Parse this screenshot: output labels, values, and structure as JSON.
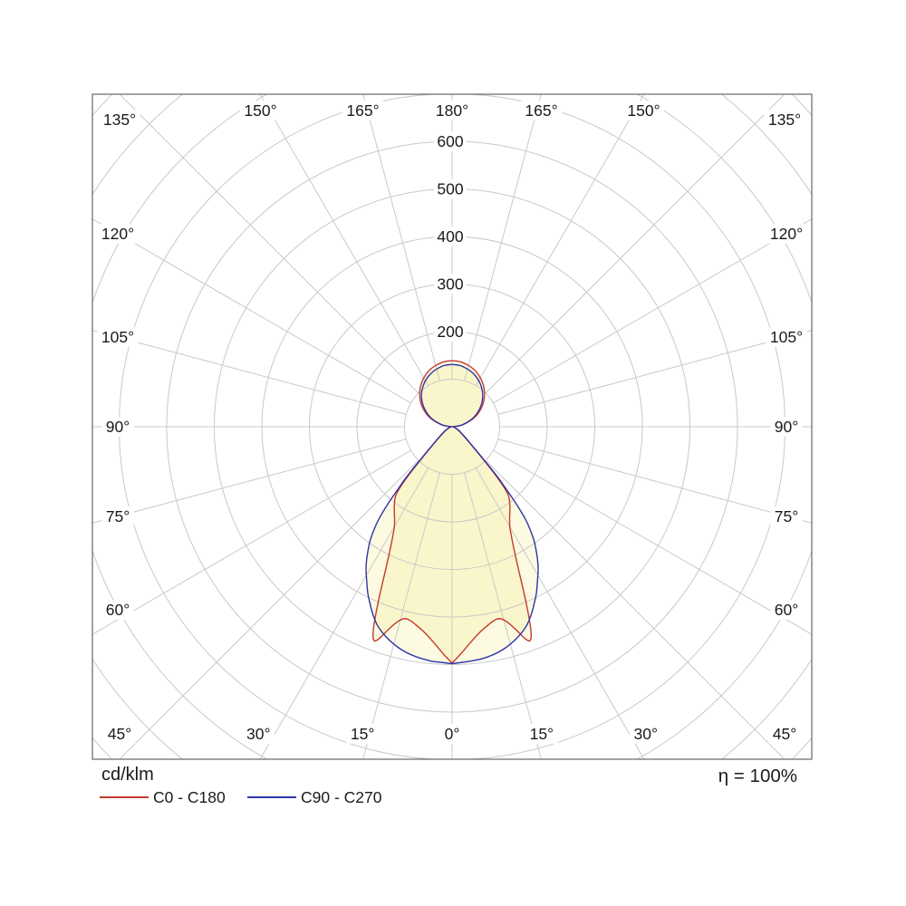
{
  "page": {
    "background": "#ffffff"
  },
  "chart_data": {
    "type": "polar_photometric",
    "title": "",
    "unit_label": "cd/klm",
    "efficiency_label": "η = 100%",
    "grid": {
      "ring_step_cd": 100,
      "ring_count": 10,
      "ray_step_deg": 15,
      "ray_inner_value_cd": 100,
      "grid_color": "#c9c9c9",
      "frame_color": "#666666"
    },
    "radial_axis": {
      "tick_labels": [
        {
          "value": 200,
          "label": "200"
        },
        {
          "value": 300,
          "label": "300"
        },
        {
          "value": 400,
          "label": "400"
        },
        {
          "value": 500,
          "label": "500"
        },
        {
          "value": 600,
          "label": "600"
        }
      ]
    },
    "angle_labels": [
      {
        "angle": -135,
        "label": "135°"
      },
      {
        "angle": -150,
        "label": "150°"
      },
      {
        "angle": -165,
        "label": "165°"
      },
      {
        "angle": 180,
        "label": "180°"
      },
      {
        "angle": 165,
        "label": "165°"
      },
      {
        "angle": 150,
        "label": "150°"
      },
      {
        "angle": 135,
        "label": "135°"
      },
      {
        "angle": -120,
        "label": "120°"
      },
      {
        "angle": -105,
        "label": "105°"
      },
      {
        "angle": -90,
        "label": "90°"
      },
      {
        "angle": -75,
        "label": "75°"
      },
      {
        "angle": -60,
        "label": "60°"
      },
      {
        "angle": 120,
        "label": "120°"
      },
      {
        "angle": 105,
        "label": "105°"
      },
      {
        "angle": 90,
        "label": "90°"
      },
      {
        "angle": 75,
        "label": "75°"
      },
      {
        "angle": 60,
        "label": "60°"
      },
      {
        "angle": -45,
        "label": "45°"
      },
      {
        "angle": -30,
        "label": "30°"
      },
      {
        "angle": -15,
        "label": "15°"
      },
      {
        "angle": 0,
        "label": "0°"
      },
      {
        "angle": 15,
        "label": "15°"
      },
      {
        "angle": 30,
        "label": "30°"
      },
      {
        "angle": 45,
        "label": "45°"
      }
    ],
    "fill_color": "#f5efa0",
    "series": [
      {
        "name": "C0 - C180",
        "color": "#c43a2f",
        "unit": "cd/klm",
        "angles_deg": [
          0,
          2,
          4,
          6,
          8,
          10,
          12,
          14,
          16,
          18,
          19,
          20,
          21,
          22,
          23,
          24,
          25,
          26,
          27,
          28,
          29,
          30,
          32,
          34,
          36,
          38,
          40,
          42,
          44,
          46,
          48,
          50,
          53,
          56,
          60,
          65,
          70,
          75,
          80,
          85,
          90,
          95,
          100,
          110,
          120,
          130,
          140,
          150,
          160,
          170,
          175,
          180
        ],
        "values_cd_per_klm": [
          497,
          480,
          462,
          447,
          434,
          425,
          417,
          414,
          428,
          455,
          472,
          482,
          466,
          432,
          395,
          360,
          330,
          305,
          285,
          268,
          254,
          242,
          228,
          217,
          207,
          196,
          183,
          140,
          88,
          62,
          47,
          37,
          27,
          21,
          15.5,
          10.5,
          7,
          4.5,
          3,
          1.5,
          0.5,
          12,
          24,
          48,
          70,
          89,
          106,
          120,
          131,
          137,
          138.5,
          139
        ]
      },
      {
        "name": "C90 - C270",
        "color": "#2e35a6",
        "unit": "cd/klm",
        "angles_deg": [
          0,
          5,
          10,
          15,
          20,
          23,
          25,
          27,
          29,
          31,
          33,
          35,
          36,
          37,
          38,
          39,
          40,
          41,
          42,
          43,
          44,
          45,
          47,
          50,
          53,
          56,
          60,
          65,
          70,
          75,
          80,
          85,
          90,
          95,
          100,
          110,
          120,
          130,
          140,
          150,
          160,
          170,
          175,
          180
        ],
        "values_cd_per_klm": [
          498,
          495,
          489,
          475,
          452,
          428,
          409,
          392,
          370,
          352,
          330,
          305,
          292,
          275,
          258,
          235,
          205,
          170,
          150,
          120,
          95,
          78,
          56,
          40,
          30,
          23,
          17.5,
          12,
          8,
          5.5,
          3.5,
          2,
          1,
          11,
          23,
          45,
          65,
          84,
          100,
          113,
          123,
          129,
          130.5,
          131
        ]
      }
    ]
  },
  "legend": {
    "unit": "cd/klm",
    "entries": [
      {
        "label": "C0 - C180",
        "color": "#c43a2f"
      },
      {
        "label": "C90 - C270",
        "color": "#2e35a6"
      }
    ]
  }
}
